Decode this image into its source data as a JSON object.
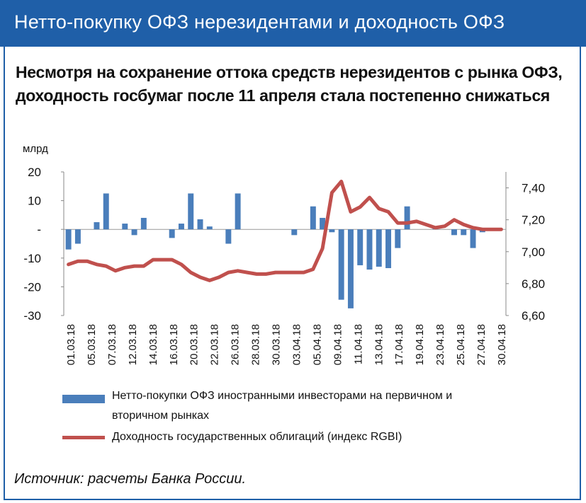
{
  "banner": {
    "title": "Нетто-покупку ОФЗ нерезидентами и доходность ОФЗ"
  },
  "headline": "Несмотря на сохранение оттока средств нерезидентов с рынка ОФЗ, доходность госбумаг после 11 апреля стала постепенно снижаться",
  "colors": {
    "banner": "#1f5fa8",
    "bars": "#4a7ebb",
    "line": "#c0504d"
  },
  "chart_data": {
    "type": "bar+line",
    "ylabel_left": "млрд",
    "left_axis": {
      "min": -30,
      "max": 20,
      "ticks": [
        "20",
        "10",
        "-",
        "-10",
        "-20",
        "-30"
      ]
    },
    "right_axis": {
      "min": 6.6,
      "max": 7.5,
      "ticks": [
        "7,40",
        "7,20",
        "7,00",
        "6,80",
        "6,60"
      ]
    },
    "x_tick_labels": [
      "01.03.18",
      "05.03.18",
      "07.03.18",
      "12.03.18",
      "14.03.18",
      "16.03.18",
      "20.03.18",
      "22.03.18",
      "26.03.18",
      "28.03.18",
      "30.03.18",
      "03.04.18",
      "05.04.18",
      "09.04.18",
      "11.04.18",
      "13.04.18",
      "17.04.18",
      "19.04.18",
      "23.04.18",
      "25.04.18",
      "27.04.18",
      "30.04.18"
    ],
    "series": [
      {
        "name": "Нетто-покупки ОФЗ иностранными инвесторами на первичном и вторичном рынках",
        "type": "bar",
        "axis": "left",
        "values": [
          -7,
          -5,
          0,
          2.5,
          12.5,
          0,
          2,
          -2,
          4,
          0,
          0,
          -3,
          2,
          12.5,
          3.5,
          1,
          0,
          -5,
          12.5,
          0,
          0,
          0,
          0,
          0,
          -2,
          0,
          8,
          4,
          -1,
          -24.5,
          -27.5,
          -12.5,
          -14,
          -13,
          -13.5,
          -6.5,
          8,
          0,
          0,
          0.5,
          0,
          -2,
          -2,
          -6.5,
          -1,
          0,
          0
        ]
      },
      {
        "name": "Доходность государственных облигаций (индекс RGBI)",
        "type": "line",
        "axis": "right",
        "values": [
          6.92,
          6.94,
          6.94,
          6.92,
          6.91,
          6.88,
          6.9,
          6.91,
          6.91,
          6.95,
          6.95,
          6.95,
          6.92,
          6.87,
          6.84,
          6.82,
          6.84,
          6.87,
          6.88,
          6.87,
          6.86,
          6.86,
          6.87,
          6.87,
          6.87,
          6.87,
          6.89,
          7.02,
          7.37,
          7.44,
          7.25,
          7.28,
          7.34,
          7.27,
          7.25,
          7.18,
          7.18,
          7.19,
          7.17,
          7.15,
          7.16,
          7.2,
          7.17,
          7.15,
          7.14,
          7.14,
          7.14
        ]
      }
    ]
  },
  "legend": {
    "bars_label_line1": "Нетто-покупки ОФЗ иностранными инвесторами на первичном и",
    "bars_label_line2": "вторичном рынках",
    "line_label": "Доходность государственных облигаций (индекс RGBI)"
  },
  "source": "Источник: расчеты Банка России."
}
